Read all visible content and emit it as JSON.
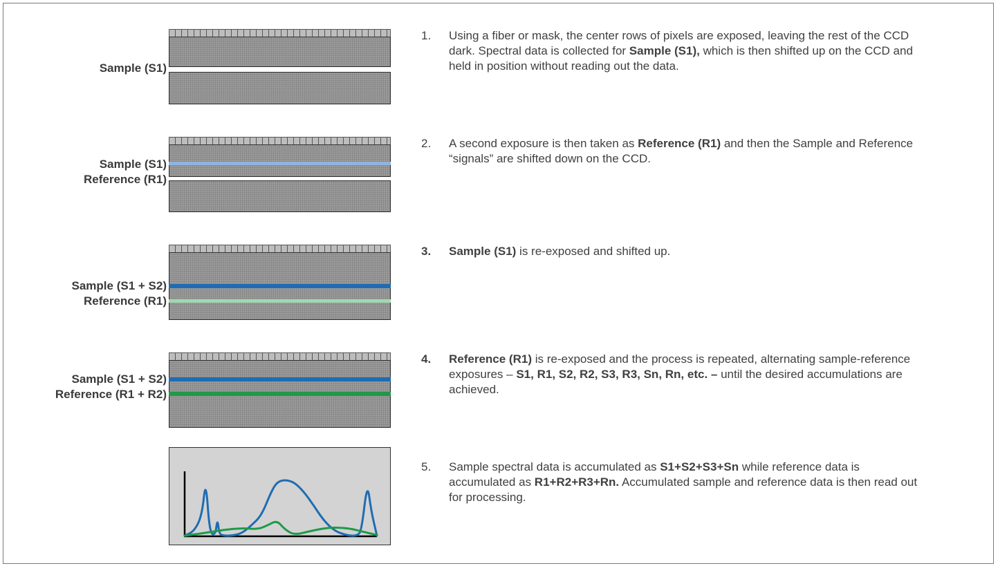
{
  "steps": [
    {
      "labels": [
        "Sample (S1)"
      ],
      "num": "1.",
      "text": [
        {
          "t": "Using a fiber or mask, the center rows of pixels are exposed, leaving the rest of the CCD dark. Spectral data is collected for ",
          "b": false
        },
        {
          "t": "Sample (S1),",
          "b": true
        },
        {
          "t": " which is then shifted up on the CCD and held in position without reading out the data.",
          "b": false
        }
      ]
    },
    {
      "labels": [
        "Sample (S1)",
        "Reference (R1)"
      ],
      "num": "2.",
      "text": [
        {
          "t": "A second exposure is then taken as ",
          "b": false
        },
        {
          "t": "Reference (R1)",
          "b": true
        },
        {
          "t": " and then the Sample and Reference “signals” are shifted down on the CCD.",
          "b": false
        }
      ]
    },
    {
      "labels": [
        "Sample (S1 + S2)",
        "Reference (R1)"
      ],
      "num": "3.",
      "text": [
        {
          "t": "Sample (S1)",
          "b": true
        },
        {
          "t": " is re-exposed and shifted up.",
          "b": false
        }
      ]
    },
    {
      "labels": [
        "Sample (S1 + S2)",
        "Reference (R1 + R2)"
      ],
      "num": "4.",
      "text": [
        {
          "t": "Reference (R1)",
          "b": true
        },
        {
          "t": " is re-exposed and the process is repeated, alternating sample-reference exposures – ",
          "b": false
        },
        {
          "t": "S1, R1, S2, R2, S3, R3, Sn, Rn, etc. –",
          "b": true
        },
        {
          "t": " until the desired accumulations are achieved.",
          "b": false
        }
      ]
    },
    {
      "labels": [],
      "num": "5.",
      "text": [
        {
          "t": "Sample spectral data is accumulated as ",
          "b": false
        },
        {
          "t": "S1+S2+S3+Sn",
          "b": true
        },
        {
          "t": " while reference data is accumulated as ",
          "b": false
        },
        {
          "t": "R1+R2+R3+Rn.",
          "b": true
        },
        {
          "t": "  Accumulated sample and reference data is then read out for processing.",
          "b": false
        }
      ]
    }
  ],
  "colors": {
    "frame_border": "#7a7a7a",
    "ccd_pixels": "#9d9d9d",
    "exposed_row": "#ffffff",
    "sample_light": "#8fb4e0",
    "sample_dark": "#1f6cb3",
    "reference_light": "#9fd8b0",
    "reference_dark": "#1e9a48",
    "chart_background": "#d3d3d3"
  },
  "chart_data": {
    "type": "line",
    "title": "",
    "xlabel": "",
    "ylabel": "",
    "xlim": [
      0,
      100
    ],
    "ylim": [
      0,
      100
    ],
    "series": [
      {
        "color": "#1f6cb3",
        "x": [
          0,
          5,
          9,
          11,
          13,
          16,
          17,
          18,
          20,
          25,
          30,
          35,
          40,
          45,
          48,
          52,
          57,
          62,
          67,
          72,
          78,
          85,
          90,
          92,
          95,
          97,
          100
        ],
        "y": [
          1,
          8,
          33,
          90,
          5,
          2,
          28,
          4,
          1,
          1,
          5,
          18,
          33,
          70,
          85,
          89,
          85,
          70,
          49,
          26,
          8,
          1,
          1,
          10,
          85,
          40,
          1
        ]
      },
      {
        "color": "#1e9a48",
        "x": [
          0,
          10,
          20,
          30,
          38,
          43,
          48,
          52,
          57,
          65,
          75,
          85,
          93,
          100
        ],
        "y": [
          1,
          5,
          10,
          13,
          11,
          17,
          25,
          11,
          2,
          8,
          14,
          13,
          7,
          2
        ]
      }
    ]
  }
}
